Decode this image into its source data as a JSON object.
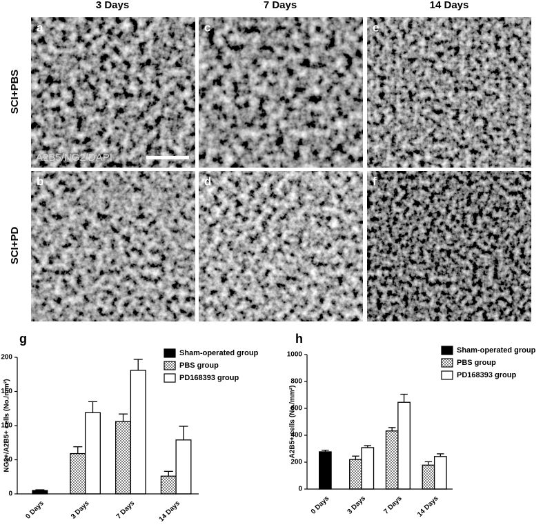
{
  "figure": {
    "column_headers": [
      "3 Days",
      "7 Days",
      "14 Days"
    ],
    "row_labels": [
      "SCI+PBS",
      "SCI+PD"
    ],
    "panels": [
      {
        "label": "a"
      },
      {
        "label": "b"
      },
      {
        "label": "c"
      },
      {
        "label": "d"
      },
      {
        "label": "e"
      },
      {
        "label": "f"
      }
    ],
    "stain_label": "A2B5/NG2/DAPI"
  },
  "chart_data": [
    {
      "type": "bar",
      "panel_label": "g",
      "ylabel": "NG2+/A2B5+ cells (No./mm²)",
      "categories": [
        "0 Days",
        "3 Days",
        "7 Days",
        "14 Days"
      ],
      "series": [
        {
          "name": "Sham-operated group",
          "color": "#000000",
          "values": [
            5,
            null,
            null,
            null
          ],
          "errors": [
            1,
            null,
            null,
            null
          ]
        },
        {
          "name": "PBS group",
          "color": "#808080",
          "pattern": "crosshatch",
          "values": [
            null,
            59,
            106,
            26
          ],
          "errors": [
            null,
            10,
            11,
            7
          ]
        },
        {
          "name": "PD168393 group",
          "color": "#ffffff",
          "values": [
            null,
            119,
            181,
            79
          ],
          "errors": [
            null,
            16,
            16,
            20
          ]
        }
      ],
      "ylim": [
        0,
        200
      ],
      "yticks": [
        0,
        50,
        100,
        150,
        200
      ],
      "grid": false,
      "legend": "right"
    },
    {
      "type": "bar",
      "panel_label": "h",
      "ylabel": "A2B5+ cells (No./mm²)",
      "categories": [
        "0 Days",
        "3 Days",
        "7 Days",
        "14 Days"
      ],
      "series": [
        {
          "name": "Sham-operated group",
          "color": "#000000",
          "values": [
            277,
            null,
            null,
            null
          ],
          "errors": [
            12,
            null,
            null,
            null
          ]
        },
        {
          "name": "PBS group",
          "color": "#808080",
          "pattern": "crosshatch",
          "values": [
            null,
            220,
            432,
            178
          ],
          "errors": [
            null,
            25,
            25,
            25
          ]
        },
        {
          "name": "PD168393 group",
          "color": "#ffffff",
          "values": [
            null,
            308,
            645,
            242
          ],
          "errors": [
            null,
            15,
            60,
            20
          ]
        }
      ],
      "ylim": [
        0,
        1000
      ],
      "yticks": [
        0,
        200,
        400,
        600,
        800,
        1000
      ],
      "grid": false,
      "legend": "right"
    }
  ]
}
